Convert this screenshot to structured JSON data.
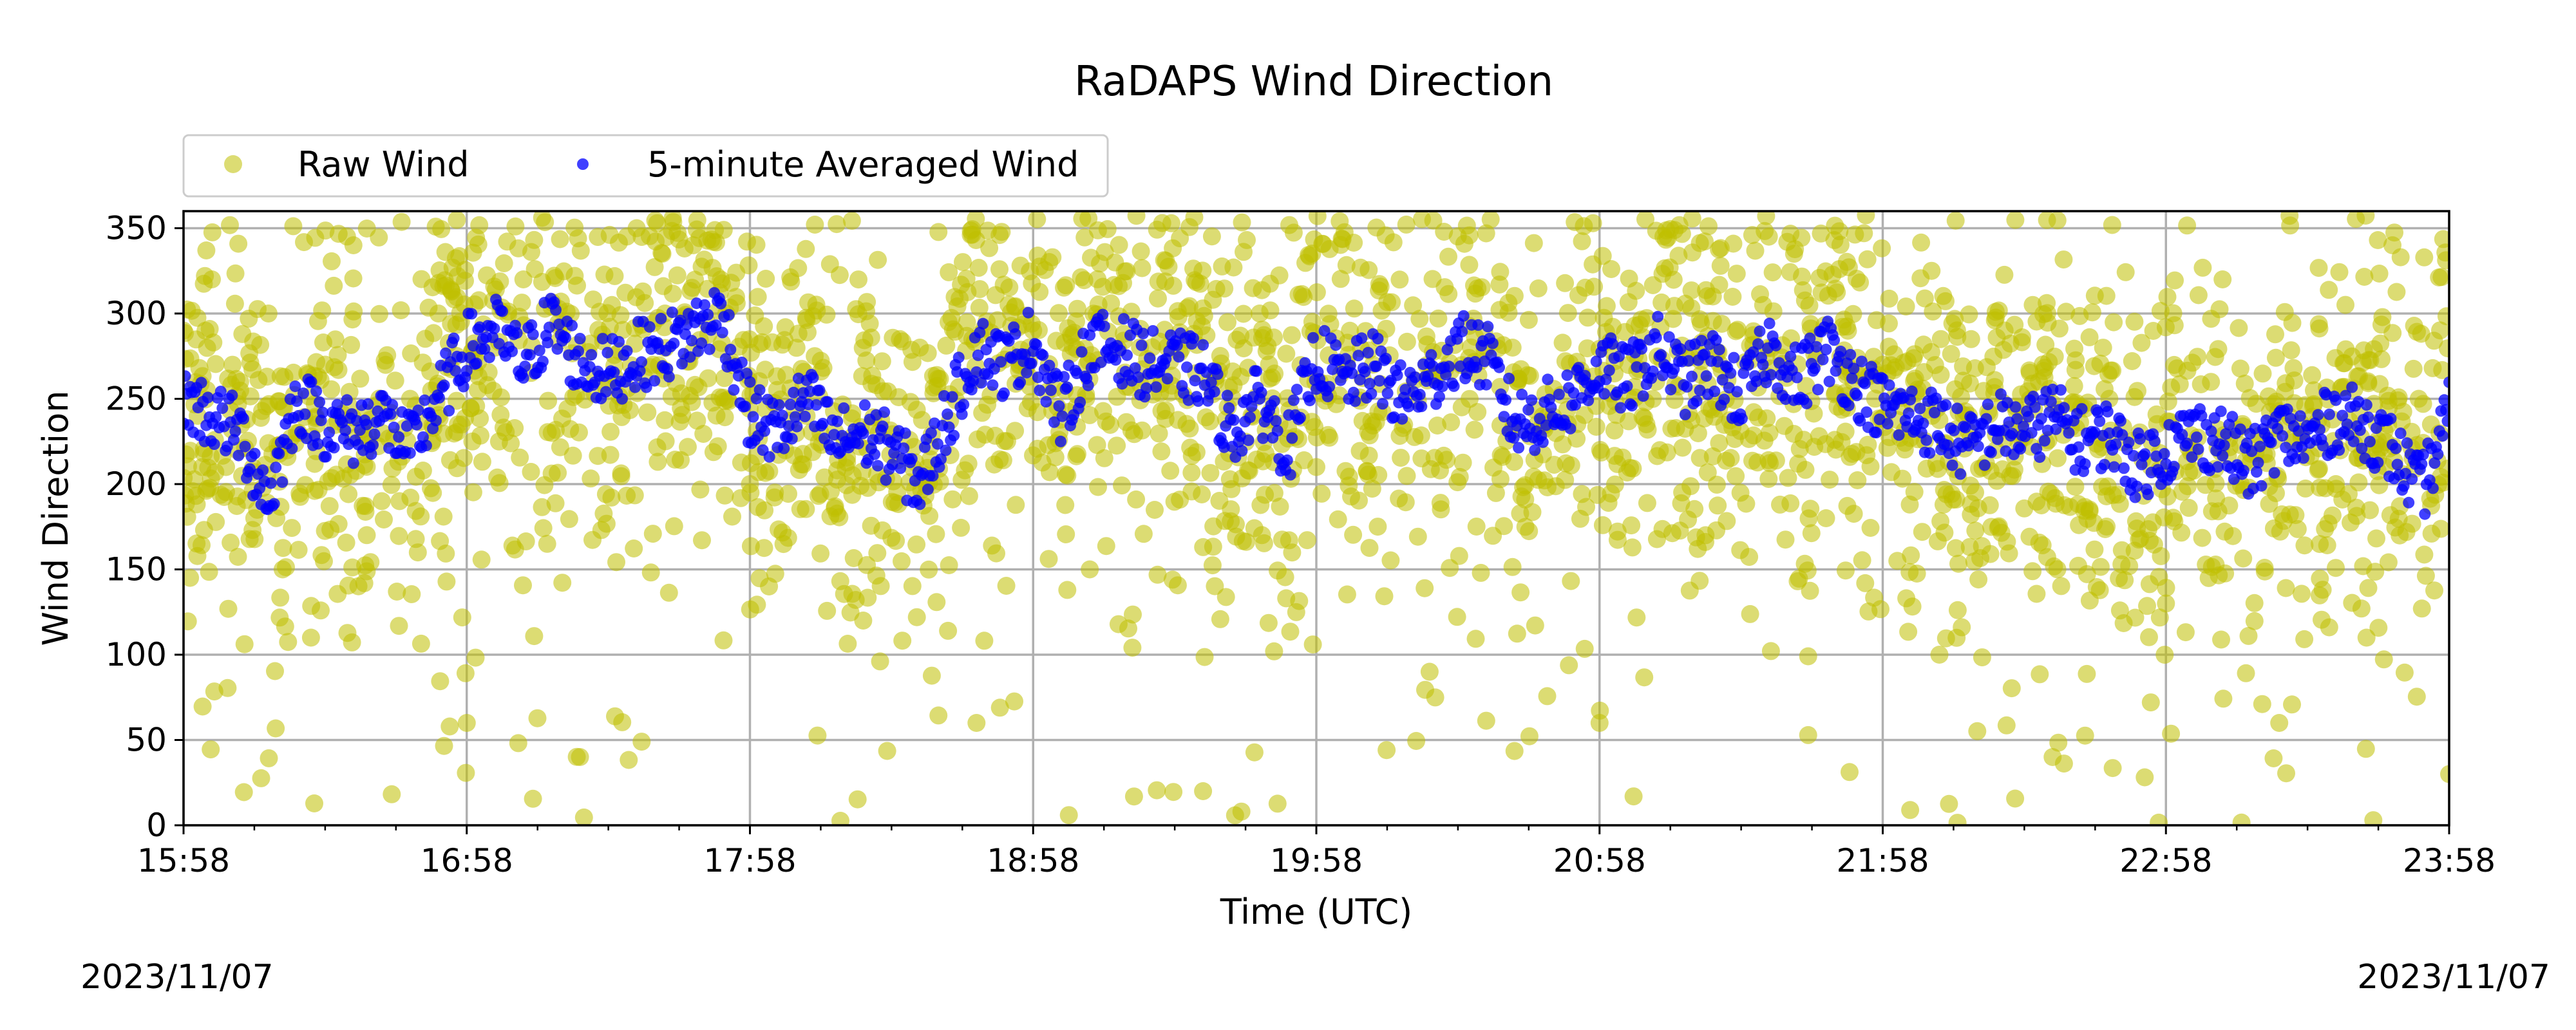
{
  "chart_data": {
    "type": "scatter",
    "title": "RaDAPS Wind Direction",
    "xlabel": "Time (UTC)",
    "ylabel": "Wind Direction",
    "x_tick_labels": [
      "15:58",
      "16:58",
      "17:58",
      "18:58",
      "19:58",
      "20:58",
      "21:58",
      "22:58",
      "23:58"
    ],
    "x_range_hours": [
      0,
      8
    ],
    "x_tick_step_hours": 1,
    "x_minor_tick_step_hours": 0.25,
    "y_ticks": [
      0,
      50,
      100,
      150,
      200,
      250,
      300,
      350
    ],
    "ylim": [
      0,
      360
    ],
    "grid": true,
    "legend_placement": "top-left, above plot",
    "date_start": "2023/11/07",
    "date_end": "2023/11/07",
    "series": [
      {
        "name": "Raw Wind",
        "marker": "circle",
        "color": "#bfbf00",
        "alpha": 0.55,
        "description_points_hours_vs_direction": [
          [
            0.0,
            290
          ],
          [
            0.05,
            240
          ],
          [
            0.1,
            320
          ],
          [
            0.15,
            210
          ],
          [
            0.2,
            260
          ],
          [
            0.25,
            180
          ],
          [
            0.3,
            300
          ],
          [
            0.35,
            150
          ],
          [
            0.4,
            230
          ],
          [
            0.45,
            110
          ],
          [
            0.5,
            270
          ],
          [
            0.6,
            340
          ],
          [
            0.7,
            190
          ],
          [
            0.8,
            250
          ],
          [
            0.9,
            300
          ],
          [
            1.0,
            60
          ],
          [
            1.1,
            280
          ],
          [
            1.2,
            320
          ],
          [
            1.3,
            230
          ],
          [
            1.4,
            40
          ],
          [
            1.5,
            260
          ],
          [
            1.6,
            350
          ],
          [
            1.7,
            300
          ],
          [
            1.8,
            340
          ],
          [
            2.0,
            200
          ],
          [
            2.2,
            240
          ],
          [
            2.4,
            120
          ],
          [
            2.6,
            280
          ],
          [
            2.8,
            60
          ],
          [
            3.0,
            290
          ],
          [
            3.2,
            150
          ],
          [
            3.4,
            260
          ],
          [
            3.6,
            20
          ],
          [
            3.8,
            300
          ],
          [
            4.0,
            210
          ],
          [
            4.2,
            270
          ],
          [
            4.4,
            90
          ],
          [
            4.6,
            280
          ],
          [
            4.8,
            240
          ],
          [
            5.0,
            60
          ],
          [
            5.2,
            260
          ],
          [
            5.4,
            310
          ],
          [
            5.6,
            230
          ],
          [
            5.8,
            180
          ],
          [
            6.0,
            270
          ],
          [
            6.2,
            100
          ],
          [
            6.4,
            220
          ],
          [
            6.6,
            40
          ],
          [
            6.8,
            250
          ],
          [
            7.0,
            130
          ],
          [
            7.2,
            320
          ],
          [
            7.4,
            60
          ],
          [
            7.6,
            200
          ],
          [
            7.8,
            340
          ],
          [
            8.0,
            30
          ]
        ]
      },
      {
        "name": "5-minute Averaged Wind",
        "marker": "circle",
        "color": "#0000ff",
        "alpha": 0.75,
        "x_hours": [
          0.0,
          0.1,
          0.2,
          0.3,
          0.4,
          0.5,
          0.6,
          0.7,
          0.8,
          0.9,
          1.0,
          1.1,
          1.2,
          1.3,
          1.4,
          1.5,
          1.6,
          1.7,
          1.8,
          1.9,
          2.0,
          2.1,
          2.2,
          2.3,
          2.4,
          2.5,
          2.6,
          2.7,
          2.8,
          2.9,
          3.0,
          3.1,
          3.2,
          3.3,
          3.4,
          3.5,
          3.6,
          3.7,
          3.8,
          3.9,
          4.0,
          4.1,
          4.2,
          4.3,
          4.4,
          4.5,
          4.6,
          4.7,
          4.8,
          4.9,
          5.0,
          5.1,
          5.2,
          5.3,
          5.4,
          5.5,
          5.6,
          5.7,
          5.8,
          5.9,
          6.0,
          6.1,
          6.2,
          6.3,
          6.4,
          6.5,
          6.6,
          6.7,
          6.8,
          6.9,
          7.0,
          7.1,
          7.2,
          7.3,
          7.4,
          7.5,
          7.6,
          7.7,
          7.8,
          7.9,
          8.0
        ],
        "values": [
          250,
          240,
          230,
          190,
          250,
          235,
          230,
          240,
          220,
          250,
          280,
          290,
          270,
          295,
          270,
          265,
          275,
          280,
          290,
          300,
          240,
          230,
          250,
          225,
          230,
          220,
          200,
          240,
          280,
          270,
          285,
          240,
          280,
          280,
          270,
          270,
          265,
          230,
          250,
          220,
          275,
          260,
          270,
          250,
          260,
          280,
          275,
          235,
          240,
          250,
          270,
          260,
          280,
          260,
          270,
          250,
          280,
          260,
          280,
          260,
          245,
          240,
          235,
          220,
          235,
          230,
          240,
          225,
          230,
          210,
          220,
          230,
          225,
          210,
          230,
          225,
          240,
          235,
          220,
          195,
          240
        ]
      }
    ]
  }
}
